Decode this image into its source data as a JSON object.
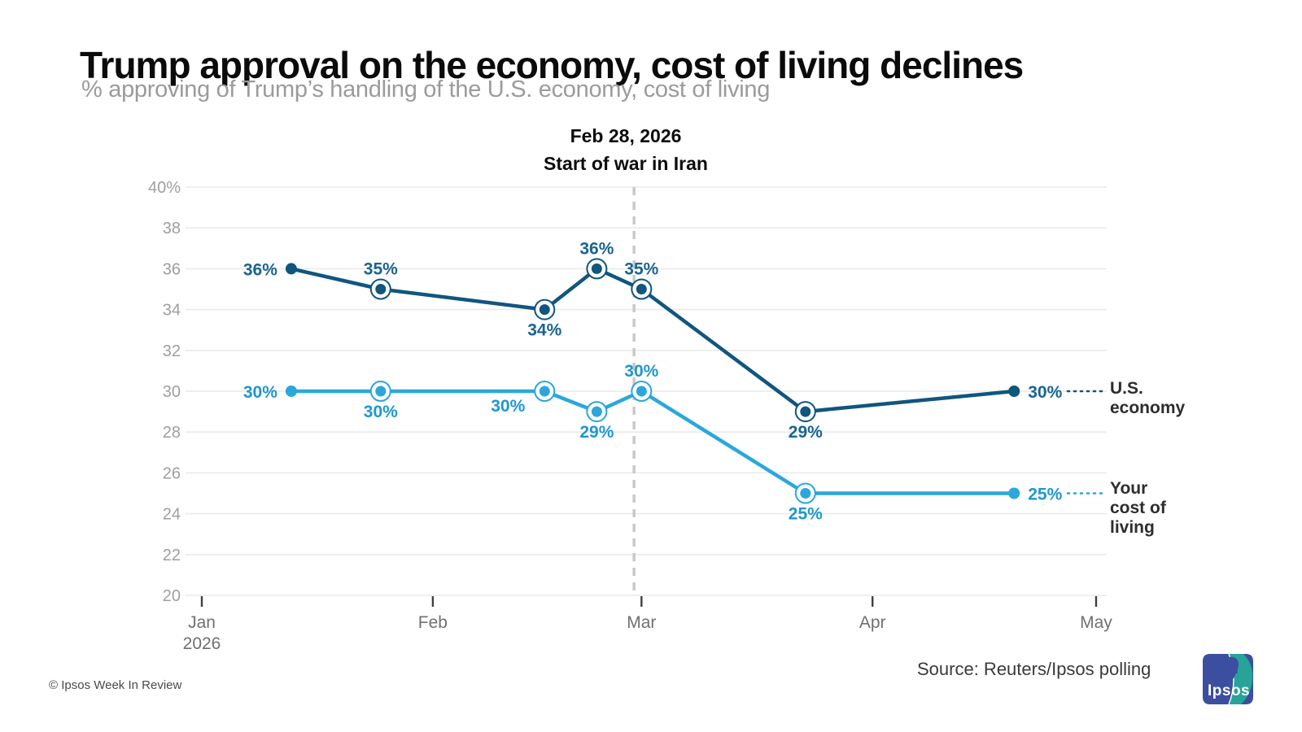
{
  "page": {
    "title": "Trump approval on the economy, cost of living declines",
    "subtitle": "% approving of Trump’s handling of the U.S. economy, cost of living"
  },
  "chart_data": {
    "type": "line",
    "title": "Trump approval on the economy, cost of living declines",
    "subtitle": "% approving of Trump’s handling of the U.S. economy, cost of living",
    "grid": "horizontal only",
    "legend_position": "right, end-of-line labels with dotted leaders",
    "y_axis": {
      "range": [
        20,
        40
      ],
      "unit": "%",
      "ticks": [
        {
          "v": 40,
          "label": "40%"
        },
        {
          "v": 38,
          "label": "38"
        },
        {
          "v": 36,
          "label": "36"
        },
        {
          "v": 34,
          "label": "34"
        },
        {
          "v": 32,
          "label": "32"
        },
        {
          "v": 30,
          "label": "30"
        },
        {
          "v": 28,
          "label": "28"
        },
        {
          "v": 26,
          "label": "26"
        },
        {
          "v": 24,
          "label": "24"
        },
        {
          "v": 22,
          "label": "22"
        },
        {
          "v": 20,
          "label": "20"
        }
      ]
    },
    "x_axis": {
      "range_days": [
        0,
        120
      ],
      "ticks": [
        {
          "day": 0,
          "label": "Jan",
          "sublabel": "2026"
        },
        {
          "day": 31,
          "label": "Feb",
          "sublabel": ""
        },
        {
          "day": 59,
          "label": "Mar",
          "sublabel": ""
        },
        {
          "day": 90,
          "label": "Apr",
          "sublabel": ""
        },
        {
          "day": 120,
          "label": "May",
          "sublabel": ""
        }
      ]
    },
    "event_line": {
      "day": 58,
      "label": "Feb 28, 2026",
      "sublabel": "Start of war in Iran",
      "color": "#c9c9c9"
    },
    "series": [
      {
        "name": "U.S. economy",
        "legend_lines": [
          "U.S.",
          "economy"
        ],
        "color": "#10567E",
        "label_color": "#1A6490",
        "x_days": [
          12,
          24,
          46,
          53,
          59,
          81,
          109
        ],
        "values": [
          36,
          35,
          34,
          36,
          35,
          29,
          30
        ],
        "labels": [
          "36%",
          "35%",
          "34%",
          "36%",
          "35%",
          "29%",
          "30%"
        ],
        "ringed": [
          false,
          true,
          true,
          true,
          true,
          true,
          false
        ],
        "label_pos": [
          "left",
          "above",
          "below",
          "above",
          "above",
          "below",
          "right"
        ]
      },
      {
        "name": "Your cost of living",
        "legend_lines": [
          "Your",
          "cost of",
          "living"
        ],
        "color": "#2BA7DB",
        "label_color": "#1F97CD",
        "x_days": [
          12,
          24,
          46,
          53,
          59,
          81,
          109
        ],
        "values": [
          30,
          30,
          30,
          29,
          30,
          25,
          25
        ],
        "labels": [
          "30%",
          "30%",
          "30%",
          "29%",
          "30%",
          "25%",
          "25%"
        ],
        "ringed": [
          false,
          true,
          true,
          true,
          true,
          true,
          false
        ],
        "label_pos": [
          "left",
          "below",
          "below-left",
          "below",
          "above",
          "below",
          "right"
        ]
      }
    ],
    "colors": {
      "gridline": "#eaeaea",
      "y_tick_label": "#9e9e9e",
      "x_tick_label": "#707070",
      "x_tick_mark": "#3f3f3f"
    }
  },
  "footer": {
    "source": "Source: Reuters/Ipsos polling",
    "credit": "© Ipsos Week In Review"
  },
  "logo": {
    "text": "Ipsos",
    "blue": "#3C4E9F",
    "teal": "#27A397"
  }
}
